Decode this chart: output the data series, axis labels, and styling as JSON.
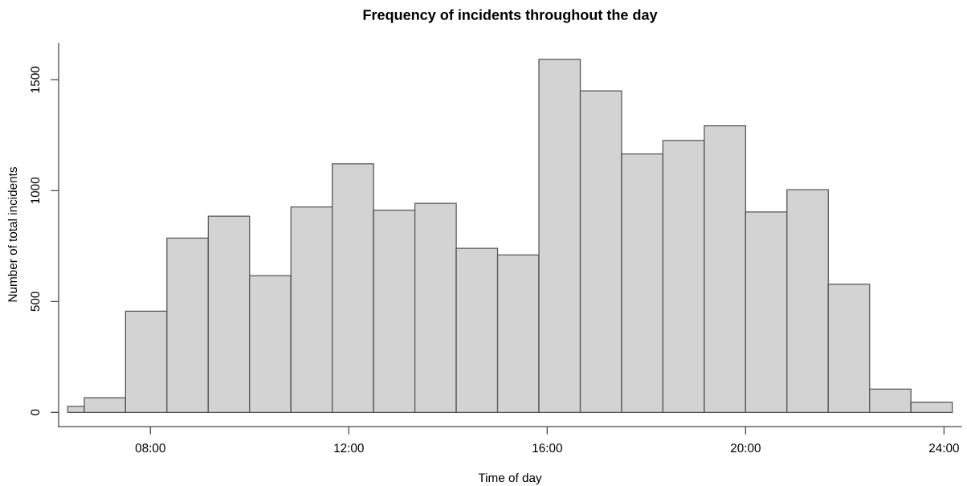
{
  "chart_data": {
    "type": "histogram",
    "title": "Frequency of incidents throughout the day",
    "xlabel": "Time of day",
    "ylabel": "Number of total incidents",
    "bins": [
      6.333,
      6.667,
      7.5,
      8.333,
      9.167,
      10,
      10.833,
      11.667,
      12.5,
      13.333,
      14.167,
      15,
      15.833,
      16.667,
      17.5,
      18.333,
      19.167,
      20,
      20.833,
      21.667,
      22.5,
      23.333,
      24.167
    ],
    "values": [
      27,
      66,
      456,
      786,
      885,
      617,
      926,
      1121,
      912,
      943,
      740,
      710,
      1592,
      1450,
      1165,
      1226,
      1292,
      904,
      1004,
      578,
      105,
      46
    ],
    "color": "#d3d3d3",
    "xlim": [
      6.15,
      24.35
    ],
    "xticks": [
      {
        "value": 8,
        "label": "08:00"
      },
      {
        "value": 12,
        "label": "12:00"
      },
      {
        "value": 16,
        "label": "16:00"
      },
      {
        "value": 20,
        "label": "20:00"
      },
      {
        "value": 24,
        "label": "24:00"
      }
    ],
    "ylim": [
      -64,
      1664
    ],
    "yticks": [
      0,
      500,
      1000,
      1500
    ],
    "grid": false
  }
}
